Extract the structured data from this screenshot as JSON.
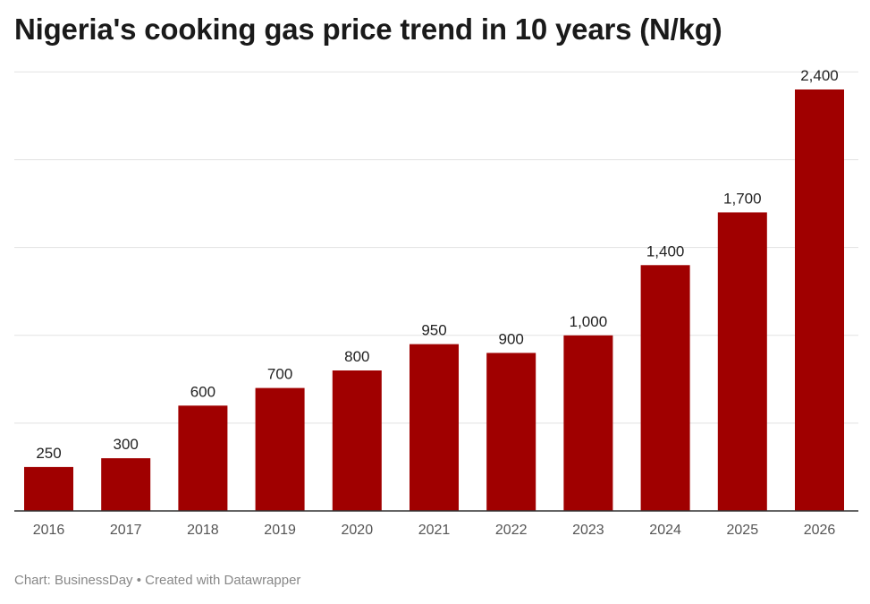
{
  "chart_data": {
    "type": "bar",
    "title": "Nigeria's cooking gas price trend in 10 years (N/kg)",
    "categories": [
      "2016",
      "2017",
      "2018",
      "2019",
      "2020",
      "2021",
      "2022",
      "2023",
      "2024",
      "2025",
      "2026"
    ],
    "values": [
      250,
      300,
      600,
      700,
      800,
      950,
      900,
      1000,
      1400,
      1700,
      2400
    ],
    "value_labels": [
      "250",
      "300",
      "600",
      "700",
      "800",
      "950",
      "900",
      "1,000",
      "1,400",
      "1,700",
      "2,400"
    ],
    "xlabel": "",
    "ylabel": "",
    "ylim": [
      0,
      2500
    ],
    "gridlines": [
      500,
      1000,
      1500,
      2000,
      2500
    ],
    "grid": true,
    "legend": "none",
    "bar_color": "#a00000"
  },
  "footer": {
    "source": "Chart: BusinessDay",
    "separator": "•",
    "credit": "Created with Datawrapper"
  },
  "colors": {
    "bar": "#a00000",
    "grid": "#e2e2e2",
    "axis": "#333333",
    "footer_text": "#888888"
  }
}
